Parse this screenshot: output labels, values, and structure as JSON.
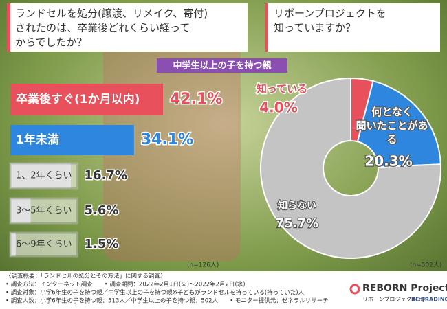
{
  "questions": [
    {
      "lines": [
        "ランドセルを処分(譲渡、リメイク、寄付)",
        "されたのは、卒業後どれくらい経って",
        "からでしたか？"
      ]
    },
    {
      "lines": [
        "リボーンプロジェクトを",
        "知っていますか？"
      ]
    }
  ],
  "subtitle": "中学生以上の子を持つ親",
  "chart_data": [
    {
      "type": "hbar",
      "categories": [
        "卒業後すぐ(1か月以内)",
        "1年未満",
        "1、2年くらい",
        "3〜5年くらい",
        "6〜9年くらい"
      ],
      "values": [
        42.1,
        34.1,
        16.7,
        5.6,
        1.5
      ],
      "value_labels": [
        "42.1%",
        "34.1%",
        "16.7%",
        "5.6%",
        "1.5%"
      ],
      "colors": [
        "#e8505b",
        "#2f86de",
        "#bdbdbd",
        "#bdbdbd",
        "#bdbdbd"
      ],
      "note": "(n=126人)"
    },
    {
      "type": "donut",
      "categories": [
        "知っている",
        "何となく聞いたことがある",
        "知らない"
      ],
      "values": [
        4.0,
        20.3,
        75.7
      ],
      "value_labels": [
        "4.0%",
        "20.3%",
        "75.7%"
      ],
      "colors": [
        "#e8505b",
        "#2f86de",
        "#c4c4c4"
      ],
      "note": "(n=502人)"
    }
  ],
  "footer": {
    "lines": [
      "〈調査概要：「ランドセルの処分とその方法」に関する調査〉",
      "• 調査方法：インターネット調査　　• 調査期間：2022年2月1日(火)〜2022年2月2日(水)",
      "• 調査対象：小学6年生の子を持つ親／中学生以上の子を持つ親※子どもがランドセルを持っている(持っていた)人",
      "• 調査人数：小学6年生の子を持つ親：513人／中学生以上の子を持つ親：502人　　• モニター提供元：ゼネラルリサーチ"
    ],
    "logo": "REBORN Project",
    "logo_sub": "リボーンプロジェクト by",
    "logo_company": "RE TRADING"
  }
}
